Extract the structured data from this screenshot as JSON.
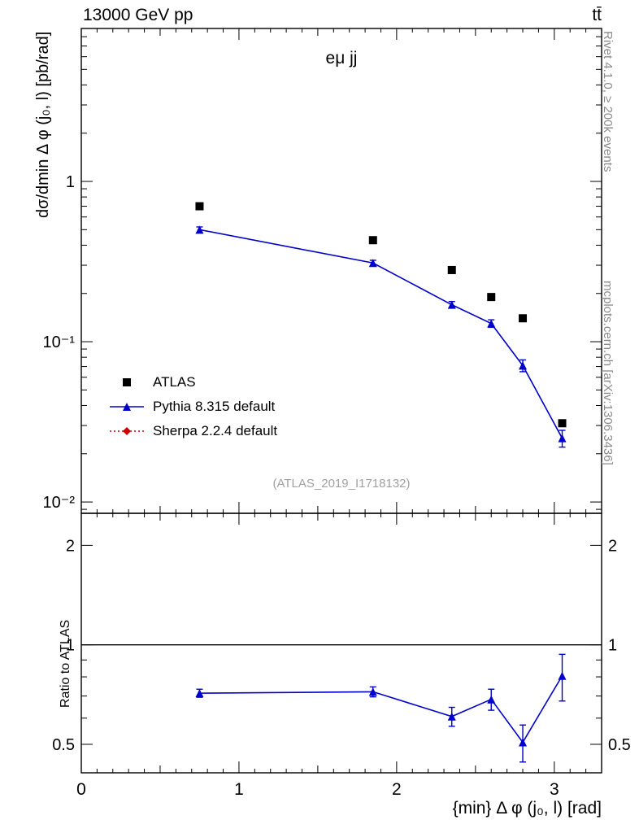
{
  "header": {
    "left_title": "13000 GeV pp",
    "right_title": "tt̄"
  },
  "watermark": "(ATLAS_2019_I1718132)",
  "side_notes": {
    "top": "Rivet 4.1.0, ≥ 200k events",
    "bottom": "mcplots.cern.ch [arXiv:1306.3436]"
  },
  "colors": {
    "atlas": "#000000",
    "pythia": "#0000cc",
    "sherpa": "#cc0000",
    "note_gray": "#8a8a8a",
    "watermark_gray": "#a0a0a0"
  },
  "legend": [
    {
      "label": "ATLAS",
      "marker": "square",
      "color": "#000000",
      "line": "none"
    },
    {
      "label": "Pythia 8.315 default",
      "marker": "triangle",
      "color": "#0000cc",
      "line": "solid"
    },
    {
      "label": "Sherpa 2.2.4 default",
      "marker": "diamond",
      "color": "#cc0000",
      "line": "dotted"
    }
  ],
  "chart_data": [
    {
      "type": "scatter",
      "panel": "main",
      "title": "eμ jj",
      "ylabel": "dσ/dmin Δ φ (j₀, l) [pb/rad]",
      "yscale": "log",
      "xlim": [
        0,
        3.3
      ],
      "ylim": [
        0.0085,
        9
      ],
      "grid": false,
      "ylabels_left": true,
      "ylabels_right": false,
      "yticks": [
        {
          "v": 1,
          "label": "1"
        },
        {
          "v": 0.1,
          "label": "10⁻¹"
        },
        {
          "v": 0.01,
          "label": "10⁻²"
        }
      ],
      "series": [
        {
          "name": "ATLAS",
          "marker": "square",
          "color": "#000000",
          "line": "none",
          "x": [
            0.75,
            1.85,
            2.35,
            2.6,
            2.8,
            3.05
          ],
          "y": [
            0.7,
            0.43,
            0.28,
            0.19,
            0.14,
            0.031
          ]
        },
        {
          "name": "Pythia 8.315 default",
          "marker": "triangle",
          "color": "#0000cc",
          "line": "solid",
          "x": [
            0.75,
            1.85,
            2.35,
            2.6,
            2.8,
            3.05
          ],
          "y": [
            0.5,
            0.31,
            0.17,
            0.13,
            0.071,
            0.025
          ],
          "yerr": [
            0.02,
            0.012,
            0.008,
            0.007,
            0.006,
            0.003
          ]
        },
        {
          "name": "Sherpa 2.2.4 default",
          "marker": "diamond",
          "color": "#cc0000",
          "line": "dotted",
          "x": [],
          "y": []
        }
      ]
    },
    {
      "type": "scatter",
      "panel": "ratio",
      "ylabel": "Ratio to ATLAS",
      "xlabel": "{min} Δ φ (j₀, l) [rad]",
      "yscale": "log",
      "xlim": [
        0,
        3.3
      ],
      "ylim": [
        0.41,
        2.5
      ],
      "grid": false,
      "ref_line": 1,
      "ylabels_left": true,
      "ylabels_right": true,
      "yticks": [
        {
          "v": 2,
          "label": "2"
        },
        {
          "v": 1,
          "label": "1"
        },
        {
          "v": 0.5,
          "label": "0.5"
        }
      ],
      "xtick_labels": [
        {
          "v": 0,
          "label": "0"
        },
        {
          "v": 1,
          "label": "1"
        },
        {
          "v": 2,
          "label": "2"
        },
        {
          "v": 3,
          "label": "3"
        }
      ],
      "series": [
        {
          "name": "Pythia 8.315 default / ATLAS",
          "marker": "triangle",
          "color": "#0000cc",
          "line": "solid",
          "x": [
            0.75,
            1.85,
            2.35,
            2.6,
            2.8,
            3.05
          ],
          "y": [
            0.714,
            0.721,
            0.607,
            0.684,
            0.507,
            0.806
          ],
          "yerr": [
            0.02,
            0.025,
            0.04,
            0.05,
            0.065,
            0.13
          ]
        }
      ]
    }
  ]
}
